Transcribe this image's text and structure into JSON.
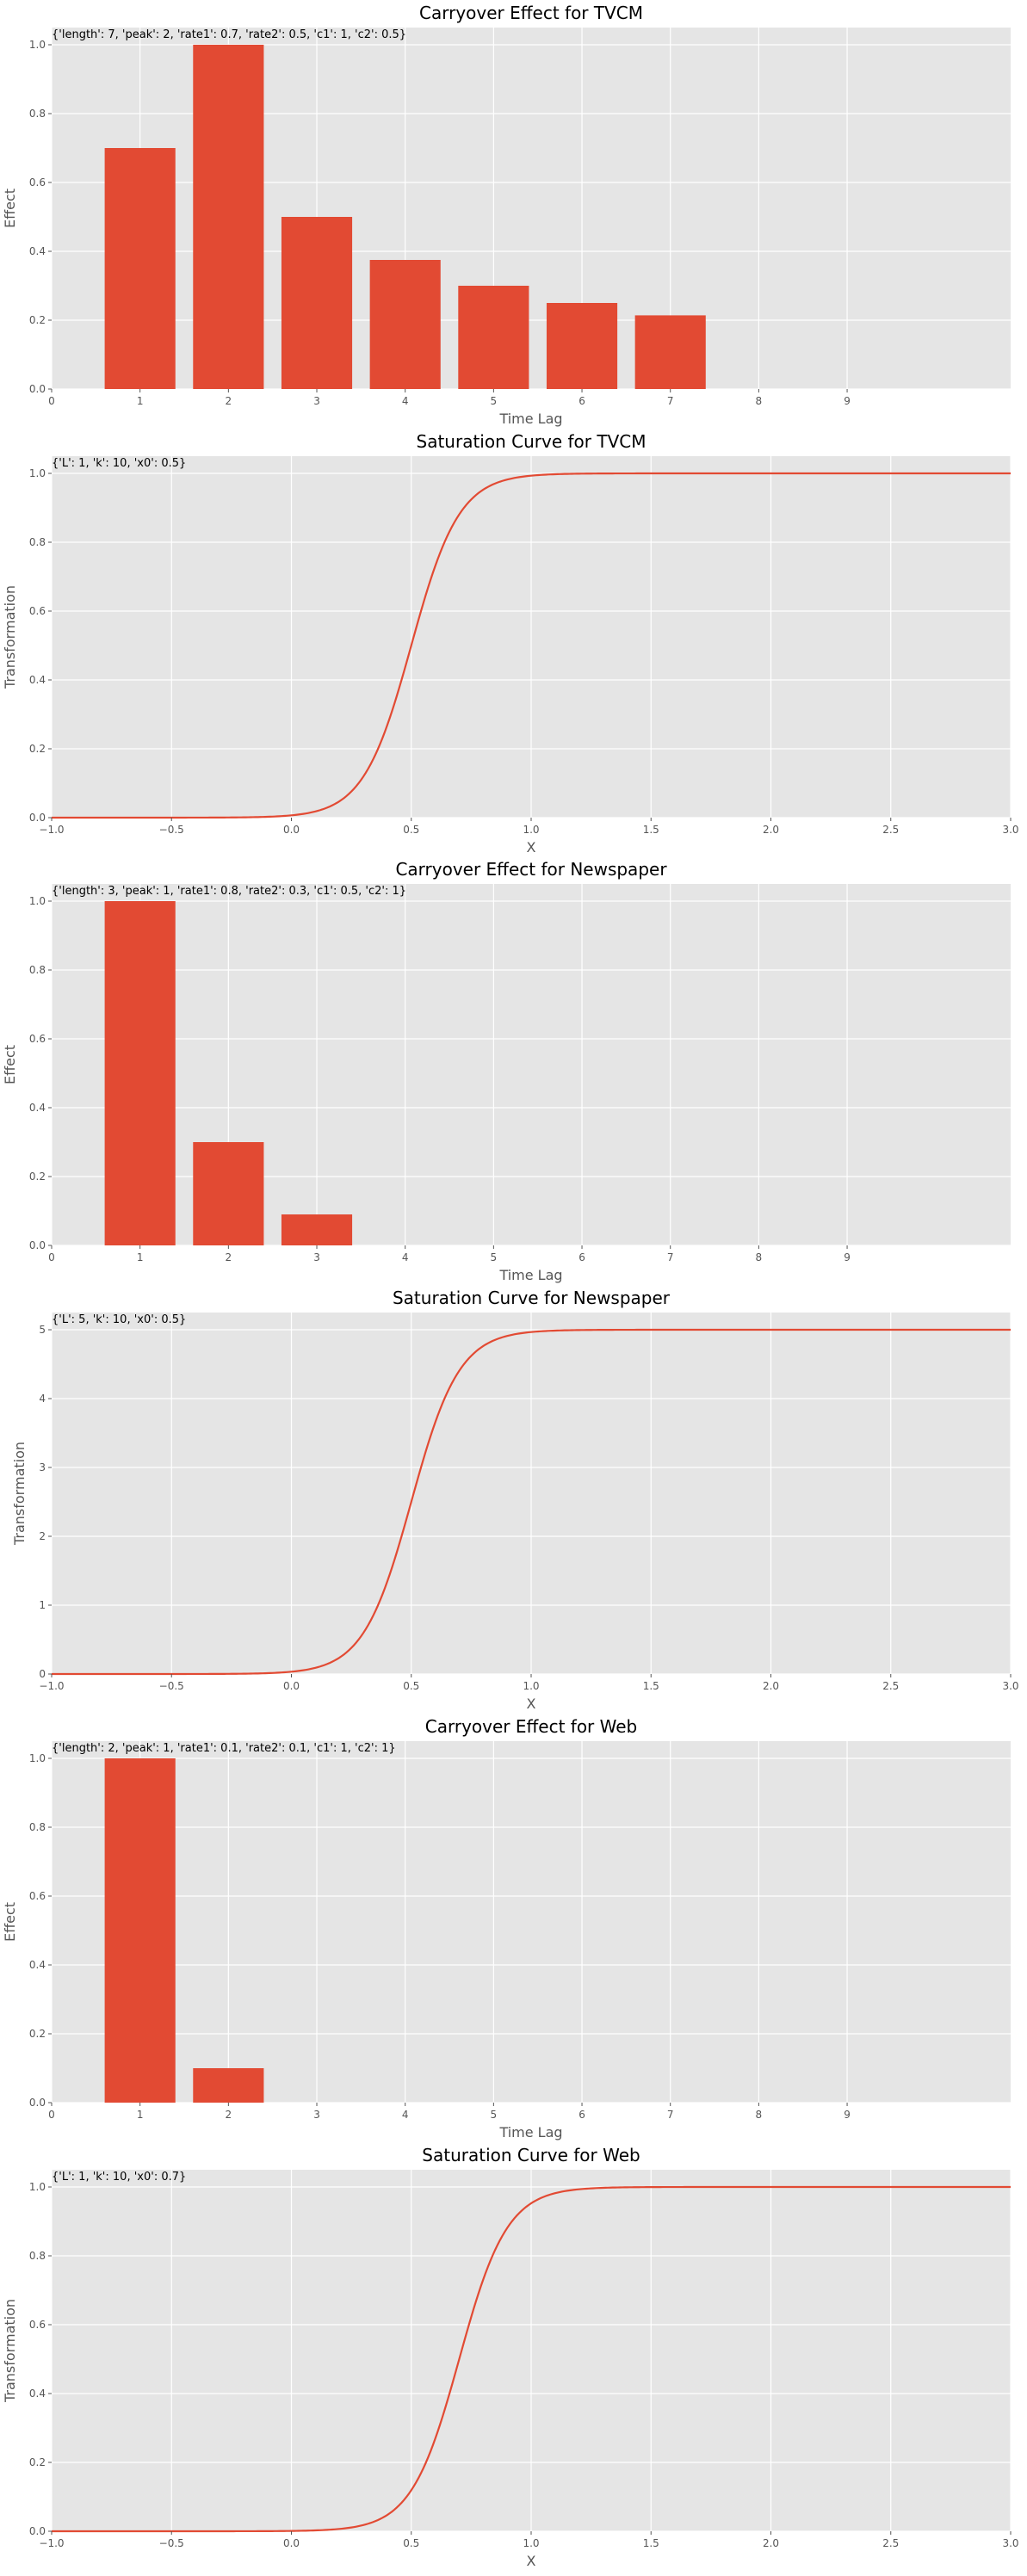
{
  "colors": {
    "panel_bg": "#E5E5E5",
    "series": "#E24A33",
    "grid": "#FFFFFF",
    "tick": "#555555"
  },
  "chart_data": [
    {
      "type": "bar",
      "title": "Carryover Effect for TVCM",
      "annotation": "{'length': 7, 'peak': 2, 'rate1': 0.7, 'rate2': 0.5, 'c1': 1, 'c2': 0.5}",
      "xlabel": "Time Lag",
      "ylabel": "Effect",
      "x": [
        1,
        2,
        3,
        4,
        5,
        6,
        7
      ],
      "values": [
        0.7,
        1.0,
        0.5,
        0.375,
        0.3,
        0.25,
        0.214
      ],
      "xlim": [
        0,
        10.85
      ],
      "ylim": [
        0,
        1.05
      ],
      "xticks": [
        "0",
        "1",
        "2",
        "3",
        "4",
        "5",
        "6",
        "7",
        "8",
        "9"
      ],
      "yticks": [
        "0.0",
        "0.2",
        "0.4",
        "0.6",
        "0.8",
        "1.0"
      ],
      "grid": true
    },
    {
      "type": "line",
      "title": "Saturation Curve for TVCM",
      "annotation": "{'L': 1, 'k': 10, 'x0': 0.5}",
      "xlabel": "X",
      "ylabel": "Transformation",
      "logistic": {
        "L": 1,
        "k": 10,
        "x0": 0.5
      },
      "xlim": [
        -1.0,
        3.0
      ],
      "ylim": [
        0,
        1.05
      ],
      "xticks": [
        "−1.0",
        "−0.5",
        "0.0",
        "0.5",
        "1.0",
        "1.5",
        "2.0",
        "2.5",
        "3.0"
      ],
      "yticks": [
        "0.0",
        "0.2",
        "0.4",
        "0.6",
        "0.8",
        "1.0"
      ],
      "grid": true
    },
    {
      "type": "bar",
      "title": "Carryover Effect for Newspaper",
      "annotation": "{'length': 3, 'peak': 1, 'rate1': 0.8, 'rate2': 0.3, 'c1': 0.5, 'c2': 1}",
      "xlabel": "Time Lag",
      "ylabel": "Effect",
      "x": [
        1,
        2,
        3
      ],
      "values": [
        1.0,
        0.3,
        0.09
      ],
      "xlim": [
        0,
        10.85
      ],
      "ylim": [
        0,
        1.05
      ],
      "xticks": [
        "0",
        "1",
        "2",
        "3",
        "4",
        "5",
        "6",
        "7",
        "8",
        "9"
      ],
      "yticks": [
        "0.0",
        "0.2",
        "0.4",
        "0.6",
        "0.8",
        "1.0"
      ],
      "grid": true
    },
    {
      "type": "line",
      "title": "Saturation Curve for Newspaper",
      "annotation": "{'L': 5, 'k': 10, 'x0': 0.5}",
      "xlabel": "X",
      "ylabel": "Transformation",
      "logistic": {
        "L": 5,
        "k": 10,
        "x0": 0.5
      },
      "xlim": [
        -1.0,
        3.0
      ],
      "ylim": [
        0,
        5.25
      ],
      "xticks": [
        "−1.0",
        "−0.5",
        "0.0",
        "0.5",
        "1.0",
        "1.5",
        "2.0",
        "2.5",
        "3.0"
      ],
      "yticks": [
        "0",
        "1",
        "2",
        "3",
        "4",
        "5"
      ],
      "grid": true
    },
    {
      "type": "bar",
      "title": "Carryover Effect for Web",
      "annotation": "{'length': 2, 'peak': 1, 'rate1': 0.1, 'rate2': 0.1, 'c1': 1, 'c2': 1}",
      "xlabel": "Time Lag",
      "ylabel": "Effect",
      "x": [
        1,
        2
      ],
      "values": [
        1.0,
        0.1
      ],
      "xlim": [
        0,
        10.85
      ],
      "ylim": [
        0,
        1.05
      ],
      "xticks": [
        "0",
        "1",
        "2",
        "3",
        "4",
        "5",
        "6",
        "7",
        "8",
        "9"
      ],
      "yticks": [
        "0.0",
        "0.2",
        "0.4",
        "0.6",
        "0.8",
        "1.0"
      ],
      "grid": true
    },
    {
      "type": "line",
      "title": "Saturation Curve for Web",
      "annotation": "{'L': 1, 'k': 10, 'x0': 0.7}",
      "xlabel": "X",
      "ylabel": "Transformation",
      "logistic": {
        "L": 1,
        "k": 10,
        "x0": 0.7
      },
      "xlim": [
        -1.0,
        3.0
      ],
      "ylim": [
        0,
        1.05
      ],
      "xticks": [
        "−1.0",
        "−0.5",
        "0.0",
        "0.5",
        "1.0",
        "1.5",
        "2.0",
        "2.5",
        "3.0"
      ],
      "yticks": [
        "0.0",
        "0.2",
        "0.4",
        "0.6",
        "0.8",
        "1.0"
      ],
      "grid": true
    }
  ]
}
